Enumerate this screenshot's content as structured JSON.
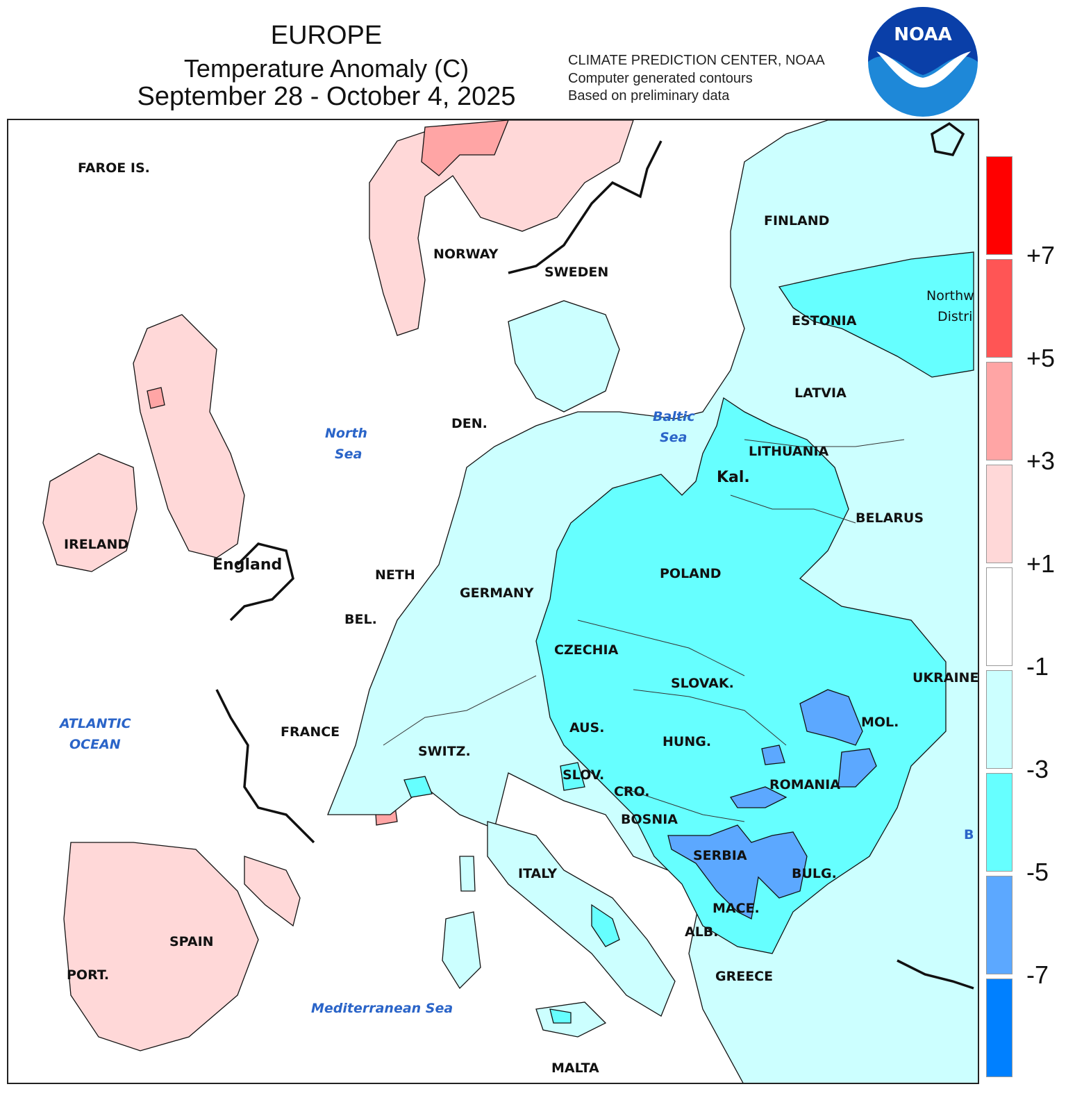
{
  "header": {
    "region": "EUROPE",
    "variable": "Temperature Anomaly (C)",
    "period": "September 28 - October 4, 2025"
  },
  "credits": {
    "line1": "CLIMATE PREDICTION CENTER, NOAA",
    "line2": "Computer generated contours",
    "line3": "Based on preliminary data"
  },
  "logo": {
    "text": "NOAA",
    "icon": "noaa-logo",
    "primary": "#0a3fa8",
    "secondary": "#1e88d8"
  },
  "legend": {
    "colors": [
      "#ff0000",
      "#ff5555",
      "#ffa5a5",
      "#ffd8d8",
      "#ffffff",
      "#ccffff",
      "#66ffff",
      "#5ca8ff",
      "#0080ff"
    ],
    "ticks": [
      "+7",
      "+5",
      "+3",
      "+1",
      "-1",
      "-3",
      "-5",
      "-7"
    ]
  },
  "labels": {
    "faroe": "FAROE IS.",
    "finland": "FINLAND",
    "norway": "NORWAY",
    "sweden": "SWEDEN",
    "northwest1": "Northw",
    "northwest2": "Distri",
    "estonia": "ESTONIA",
    "latvia": "LATVIA",
    "den": "DEN.",
    "lithuania": "LITHUANIA",
    "kal": "Kal.",
    "belarus": "BELARUS",
    "ireland": "IRELAND",
    "england": "England",
    "neth": "NETH",
    "germany": "GERMANY",
    "poland": "POLAND",
    "bel": "BEL.",
    "czechia": "CZECHIA",
    "ukraine": "UKRAINE",
    "slovak": "SLOVAK.",
    "france": "FRANCE",
    "aus": "AUS.",
    "mol": "MOL.",
    "hung": "HUNG.",
    "switz": "SWITZ.",
    "slov": "SLOV.",
    "romania": "ROMANIA",
    "cro": "CRO.",
    "bosnia": "BOSNIA",
    "serbia": "SERBIA",
    "italy": "ITALY",
    "bulg": "BULG.",
    "mace": "MACE.",
    "spain": "SPAIN",
    "alb": "ALB.",
    "port": "PORT.",
    "greece": "GREECE",
    "malta": "MALTA",
    "b": "B"
  },
  "seas": {
    "north1": "North",
    "north2": "Sea",
    "baltic1": "Baltic",
    "baltic2": "Sea",
    "atlantic1": "ATLANTIC",
    "atlantic2": "OCEAN",
    "med": "Mediterranean Sea"
  }
}
